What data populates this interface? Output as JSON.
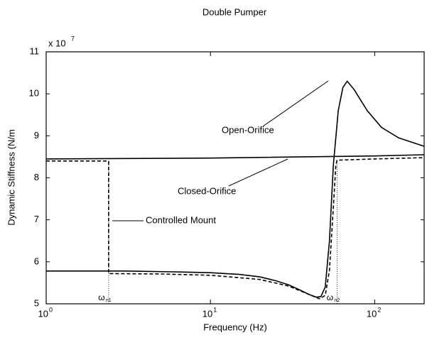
{
  "chart_data": {
    "type": "line",
    "title": "Double Pumper",
    "xlabel": "Frequency (Hz)",
    "ylabel": "Dynamic Stiffness (N/m",
    "y_multiplier": {
      "label": "x 10",
      "exp": "7"
    },
    "xscale": "log",
    "xlim": [
      1,
      200
    ],
    "ylim": [
      5,
      11
    ],
    "xticks": [
      {
        "value": 1,
        "label": "10",
        "exp": "0"
      },
      {
        "value": 10,
        "label": "10",
        "exp": "1"
      },
      {
        "value": 100,
        "label": "10",
        "exp": "2"
      }
    ],
    "yticks": [
      5,
      6,
      7,
      8,
      9,
      10,
      11
    ],
    "grid": false,
    "series": [
      {
        "name": "Closed-Orifice",
        "color": "#000000",
        "line_style": "solid",
        "x": [
          1,
          10,
          100,
          200
        ],
        "values": [
          8.45,
          8.47,
          8.52,
          8.55
        ]
      },
      {
        "name": "Open-Orifice",
        "color": "#000000",
        "line_style": "solid",
        "x": [
          1,
          3,
          6,
          10,
          15,
          20,
          25,
          30,
          35,
          40,
          44,
          47,
          50,
          53,
          56,
          60,
          64,
          68,
          75,
          90,
          110,
          140,
          200
        ],
        "values": [
          5.78,
          5.78,
          5.76,
          5.74,
          5.7,
          5.64,
          5.55,
          5.45,
          5.33,
          5.22,
          5.16,
          5.17,
          5.4,
          6.5,
          8.3,
          9.6,
          10.15,
          10.3,
          10.1,
          9.6,
          9.2,
          8.95,
          8.75
        ]
      },
      {
        "name": "Controlled Mount",
        "color": "#000000",
        "line_style": "dashed",
        "x": [
          1,
          2.4,
          2.4,
          5,
          10,
          20,
          30,
          40,
          46,
          50,
          53,
          56,
          58,
          59,
          100,
          200
        ],
        "values": [
          8.4,
          8.4,
          5.72,
          5.71,
          5.68,
          5.58,
          5.42,
          5.22,
          5.12,
          5.2,
          5.8,
          7.3,
          8.3,
          8.42,
          8.45,
          8.48
        ]
      }
    ],
    "markers": [
      {
        "x": 2.4,
        "top": 8.4,
        "label": "ω",
        "sub": "n1"
      },
      {
        "x": 59,
        "top": 8.4,
        "label": "ω",
        "sub": "n2"
      }
    ],
    "annotations": [
      {
        "text": "Open-Orifice"
      },
      {
        "text": "Closed-Orifice"
      },
      {
        "text": "Controlled Mount"
      }
    ]
  }
}
